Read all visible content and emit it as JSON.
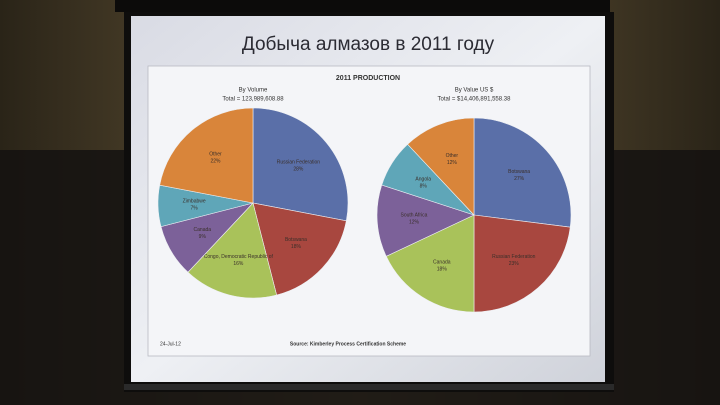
{
  "title": "Добыча  алмазов в 2011 году",
  "chart_title": "2011 PRODUCTION",
  "date": "24-Jul-12",
  "source": "Source:  Kimberley Process Certification Scheme",
  "chart_data": [
    {
      "type": "pie",
      "title": "By Volume",
      "subtitle": "Total  = 123,989,608.88",
      "categories": [
        "Russian Federation",
        "Botswana",
        "Congo, Democratic Republic of",
        "Canada",
        "Zimbabwe",
        "Other"
      ],
      "values": [
        28,
        18,
        16,
        9,
        7,
        22
      ],
      "value_labels": [
        "28%",
        "18%",
        "16%",
        "9%",
        "7%",
        "22%"
      ],
      "colors": [
        "#5a6fa8",
        "#a8473f",
        "#a9c25a",
        "#7c6199",
        "#5fa6b8",
        "#d9853a"
      ]
    },
    {
      "type": "pie",
      "title": "By Value US $",
      "subtitle": "Total  = $14,406,891,558.38",
      "categories": [
        "Botswana",
        "Russian Federation",
        "Canada",
        "South Africa",
        "Angola",
        "Other"
      ],
      "values": [
        27,
        23,
        18,
        12,
        8,
        12
      ],
      "value_labels": [
        "27%",
        "23%",
        "18%",
        "12%",
        "8%",
        "12%"
      ],
      "colors": [
        "#5a6fa8",
        "#a8473f",
        "#a9c25a",
        "#7c6199",
        "#5fa6b8",
        "#d9853a"
      ]
    }
  ]
}
